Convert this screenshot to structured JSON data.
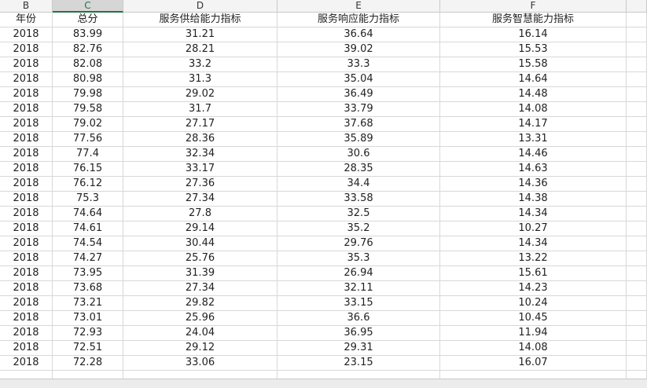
{
  "column_letters": [
    "B",
    "C",
    "D",
    "E",
    "F"
  ],
  "table": {
    "header": [
      "年份",
      "总分",
      "服务供给能力指标",
      "服务响应能力指标",
      "服务智慧能力指标"
    ],
    "rows": [
      [
        "2018",
        "83.99",
        "31.21",
        "36.64",
        "16.14"
      ],
      [
        "2018",
        "82.76",
        "28.21",
        "39.02",
        "15.53"
      ],
      [
        "2018",
        "82.08",
        "33.2",
        "33.3",
        "15.58"
      ],
      [
        "2018",
        "80.98",
        "31.3",
        "35.04",
        "14.64"
      ],
      [
        "2018",
        "79.98",
        "29.02",
        "36.49",
        "14.48"
      ],
      [
        "2018",
        "79.58",
        "31.7",
        "33.79",
        "14.08"
      ],
      [
        "2018",
        "79.02",
        "27.17",
        "37.68",
        "14.17"
      ],
      [
        "2018",
        "77.56",
        "28.36",
        "35.89",
        "13.31"
      ],
      [
        "2018",
        "77.4",
        "32.34",
        "30.6",
        "14.46"
      ],
      [
        "2018",
        "76.15",
        "33.17",
        "28.35",
        "14.63"
      ],
      [
        "2018",
        "76.12",
        "27.36",
        "34.4",
        "14.36"
      ],
      [
        "2018",
        "75.3",
        "27.34",
        "33.58",
        "14.38"
      ],
      [
        "2018",
        "74.64",
        "27.8",
        "32.5",
        "14.34"
      ],
      [
        "2018",
        "74.61",
        "29.14",
        "35.2",
        "10.27"
      ],
      [
        "2018",
        "74.54",
        "30.44",
        "29.76",
        "14.34"
      ],
      [
        "2018",
        "74.27",
        "25.76",
        "35.3",
        "13.22"
      ],
      [
        "2018",
        "73.95",
        "31.39",
        "26.94",
        "15.61"
      ],
      [
        "2018",
        "73.68",
        "27.34",
        "32.11",
        "14.23"
      ],
      [
        "2018",
        "73.21",
        "29.82",
        "33.15",
        "10.24"
      ],
      [
        "2018",
        "73.01",
        "25.96",
        "36.6",
        "10.45"
      ],
      [
        "2018",
        "72.93",
        "24.04",
        "36.95",
        "11.94"
      ],
      [
        "2018",
        "72.51",
        "29.12",
        "29.31",
        "14.08"
      ],
      [
        "2018",
        "72.28",
        "33.06",
        "23.15",
        "16.07"
      ]
    ]
  }
}
